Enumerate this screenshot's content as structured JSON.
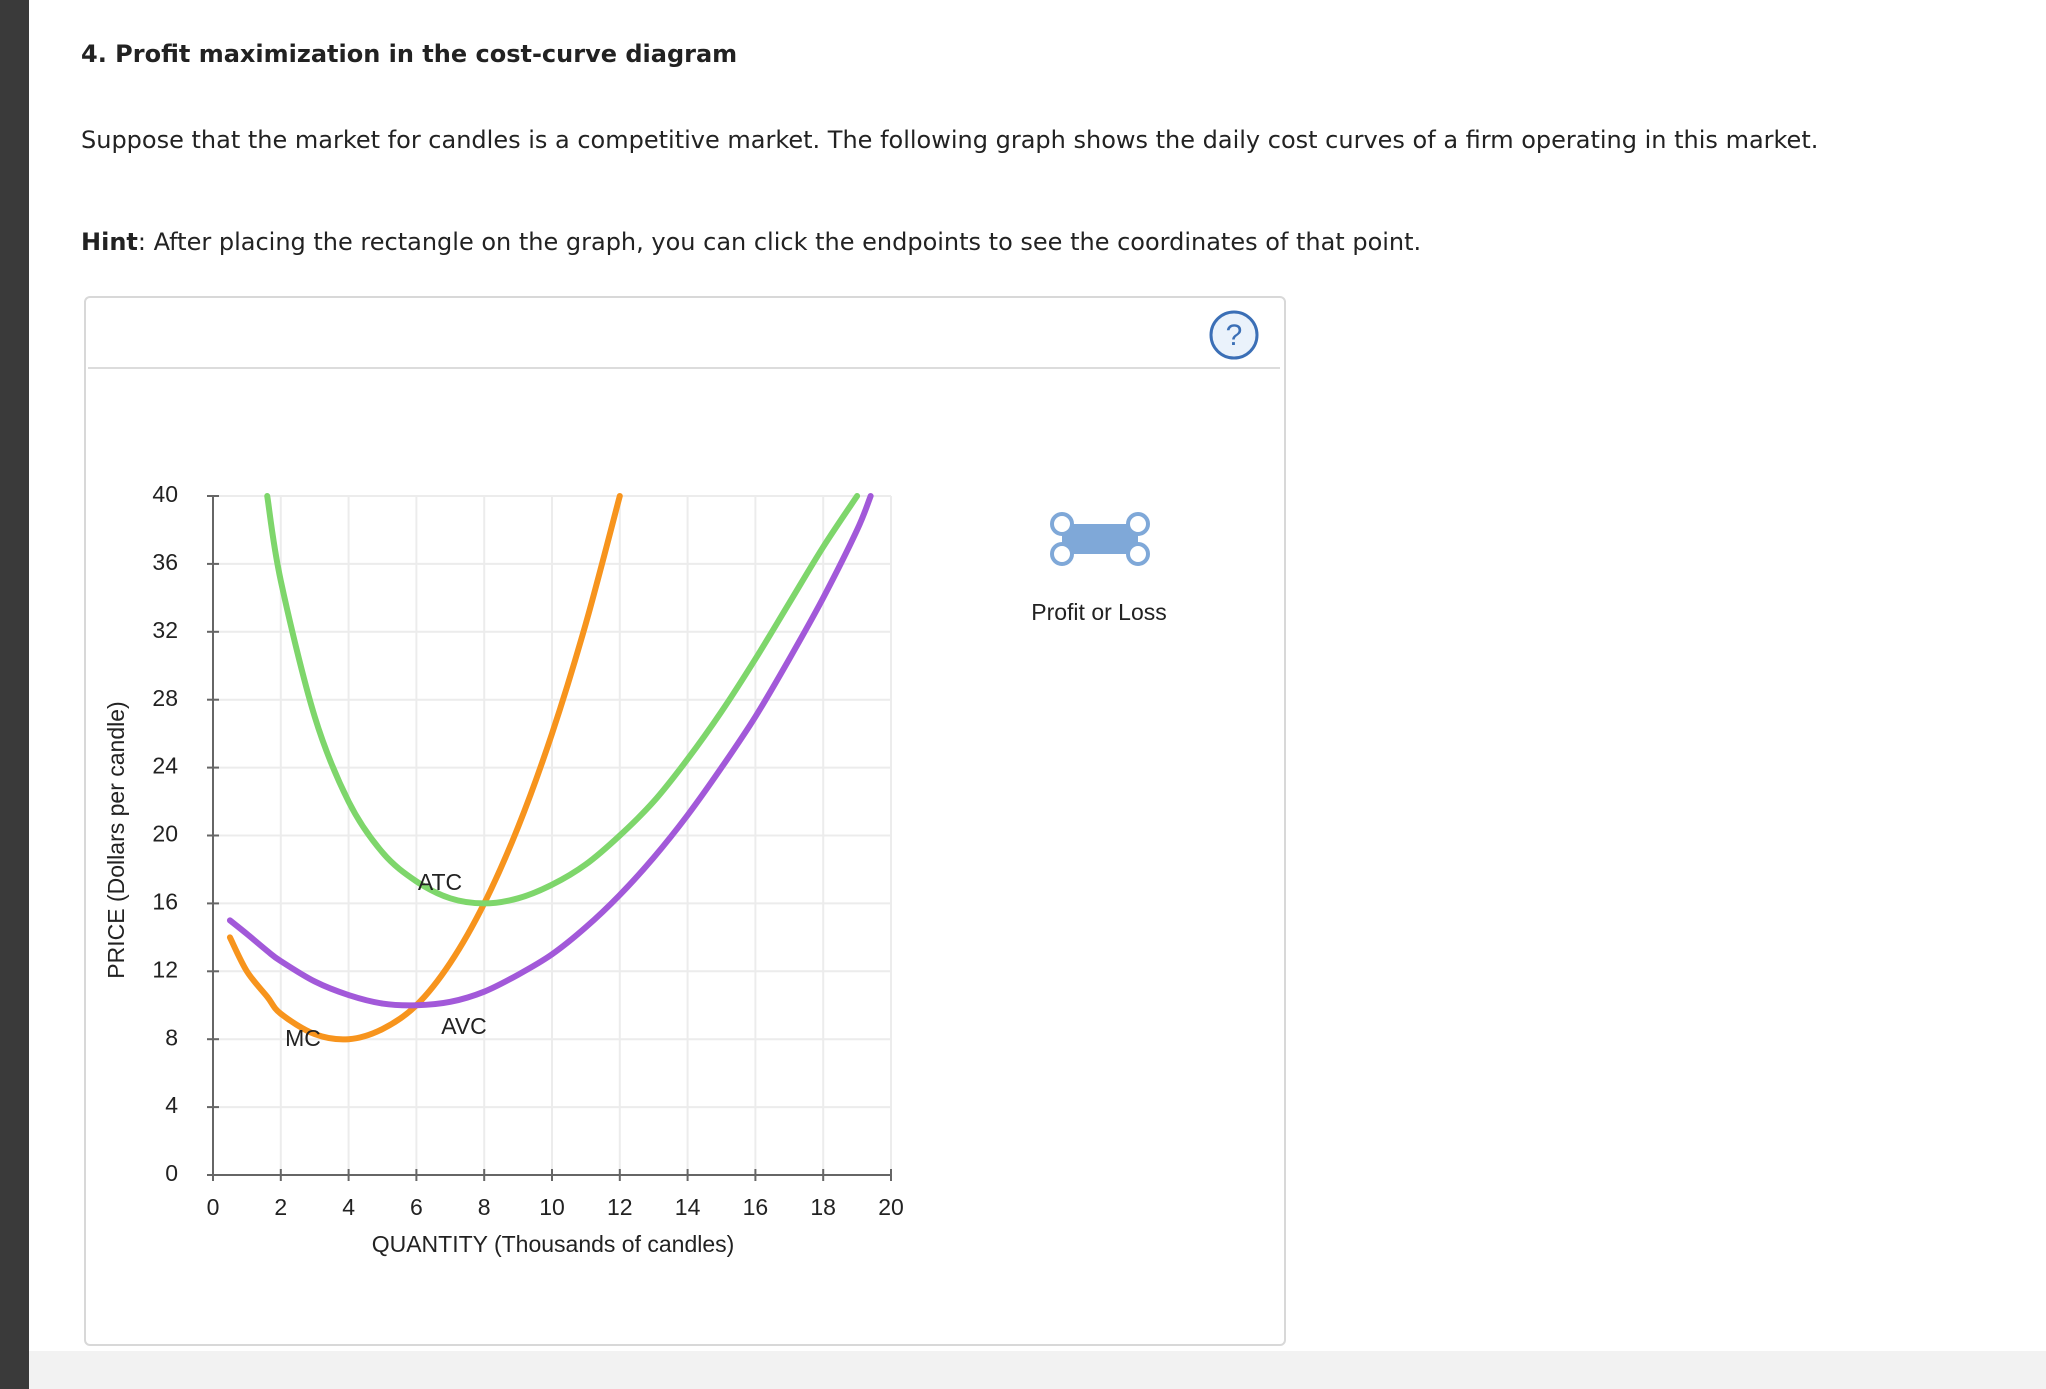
{
  "header": {
    "title": "4. Profit maximization in the cost-curve diagram"
  },
  "intro": "Suppose that the market for candles is a competitive market. The following graph shows the daily cost curves of a firm operating in this market.",
  "hint": {
    "label": "Hint",
    "text": ": After placing the rectangle on the graph, you can click the endpoints to see the coordinates of that point."
  },
  "help": "?",
  "tool": {
    "label": "Profit or Loss"
  },
  "chart_data": {
    "type": "line",
    "x_label": "QUANTITY (Thousands of candles)",
    "y_label": "PRICE (Dollars per candle)",
    "x": [
      0.5,
      1,
      1.6,
      2,
      3,
      4,
      5,
      6,
      7,
      8,
      9,
      10,
      11,
      12,
      13,
      14,
      15,
      16,
      17,
      18,
      19,
      19.4
    ],
    "series": [
      {
        "name": "MC",
        "color": "#f7941d",
        "values": [
          14,
          12,
          10.5,
          9.5,
          8.3,
          8,
          8.6,
          10,
          12.5,
          16,
          20.5,
          26,
          32.5,
          40,
          null,
          null,
          null,
          null,
          null,
          null,
          null,
          null
        ]
      },
      {
        "name": "AVC",
        "color": "#a259d9",
        "values": [
          15,
          14.2,
          13.2,
          12.6,
          11.4,
          10.6,
          10.1,
          10,
          10.2,
          10.8,
          11.8,
          13,
          14.6,
          16.5,
          18.7,
          21.2,
          24,
          27,
          30.4,
          34,
          38,
          40
        ]
      },
      {
        "name": "ATC",
        "color": "#7ed66b",
        "values": [
          null,
          null,
          40,
          35,
          27,
          22,
          19,
          17.3,
          16.3,
          16,
          16.3,
          17.1,
          18.3,
          20,
          22,
          24.5,
          27.3,
          30.4,
          33.7,
          37,
          40,
          null
        ]
      }
    ],
    "xlim": [
      0,
      20
    ],
    "ylim": [
      0,
      40
    ],
    "xticks": [
      0,
      2,
      4,
      6,
      8,
      10,
      12,
      14,
      16,
      18,
      20
    ],
    "yticks": [
      0,
      4,
      8,
      12,
      16,
      20,
      24,
      28,
      32,
      36,
      40
    ],
    "grid": true
  }
}
